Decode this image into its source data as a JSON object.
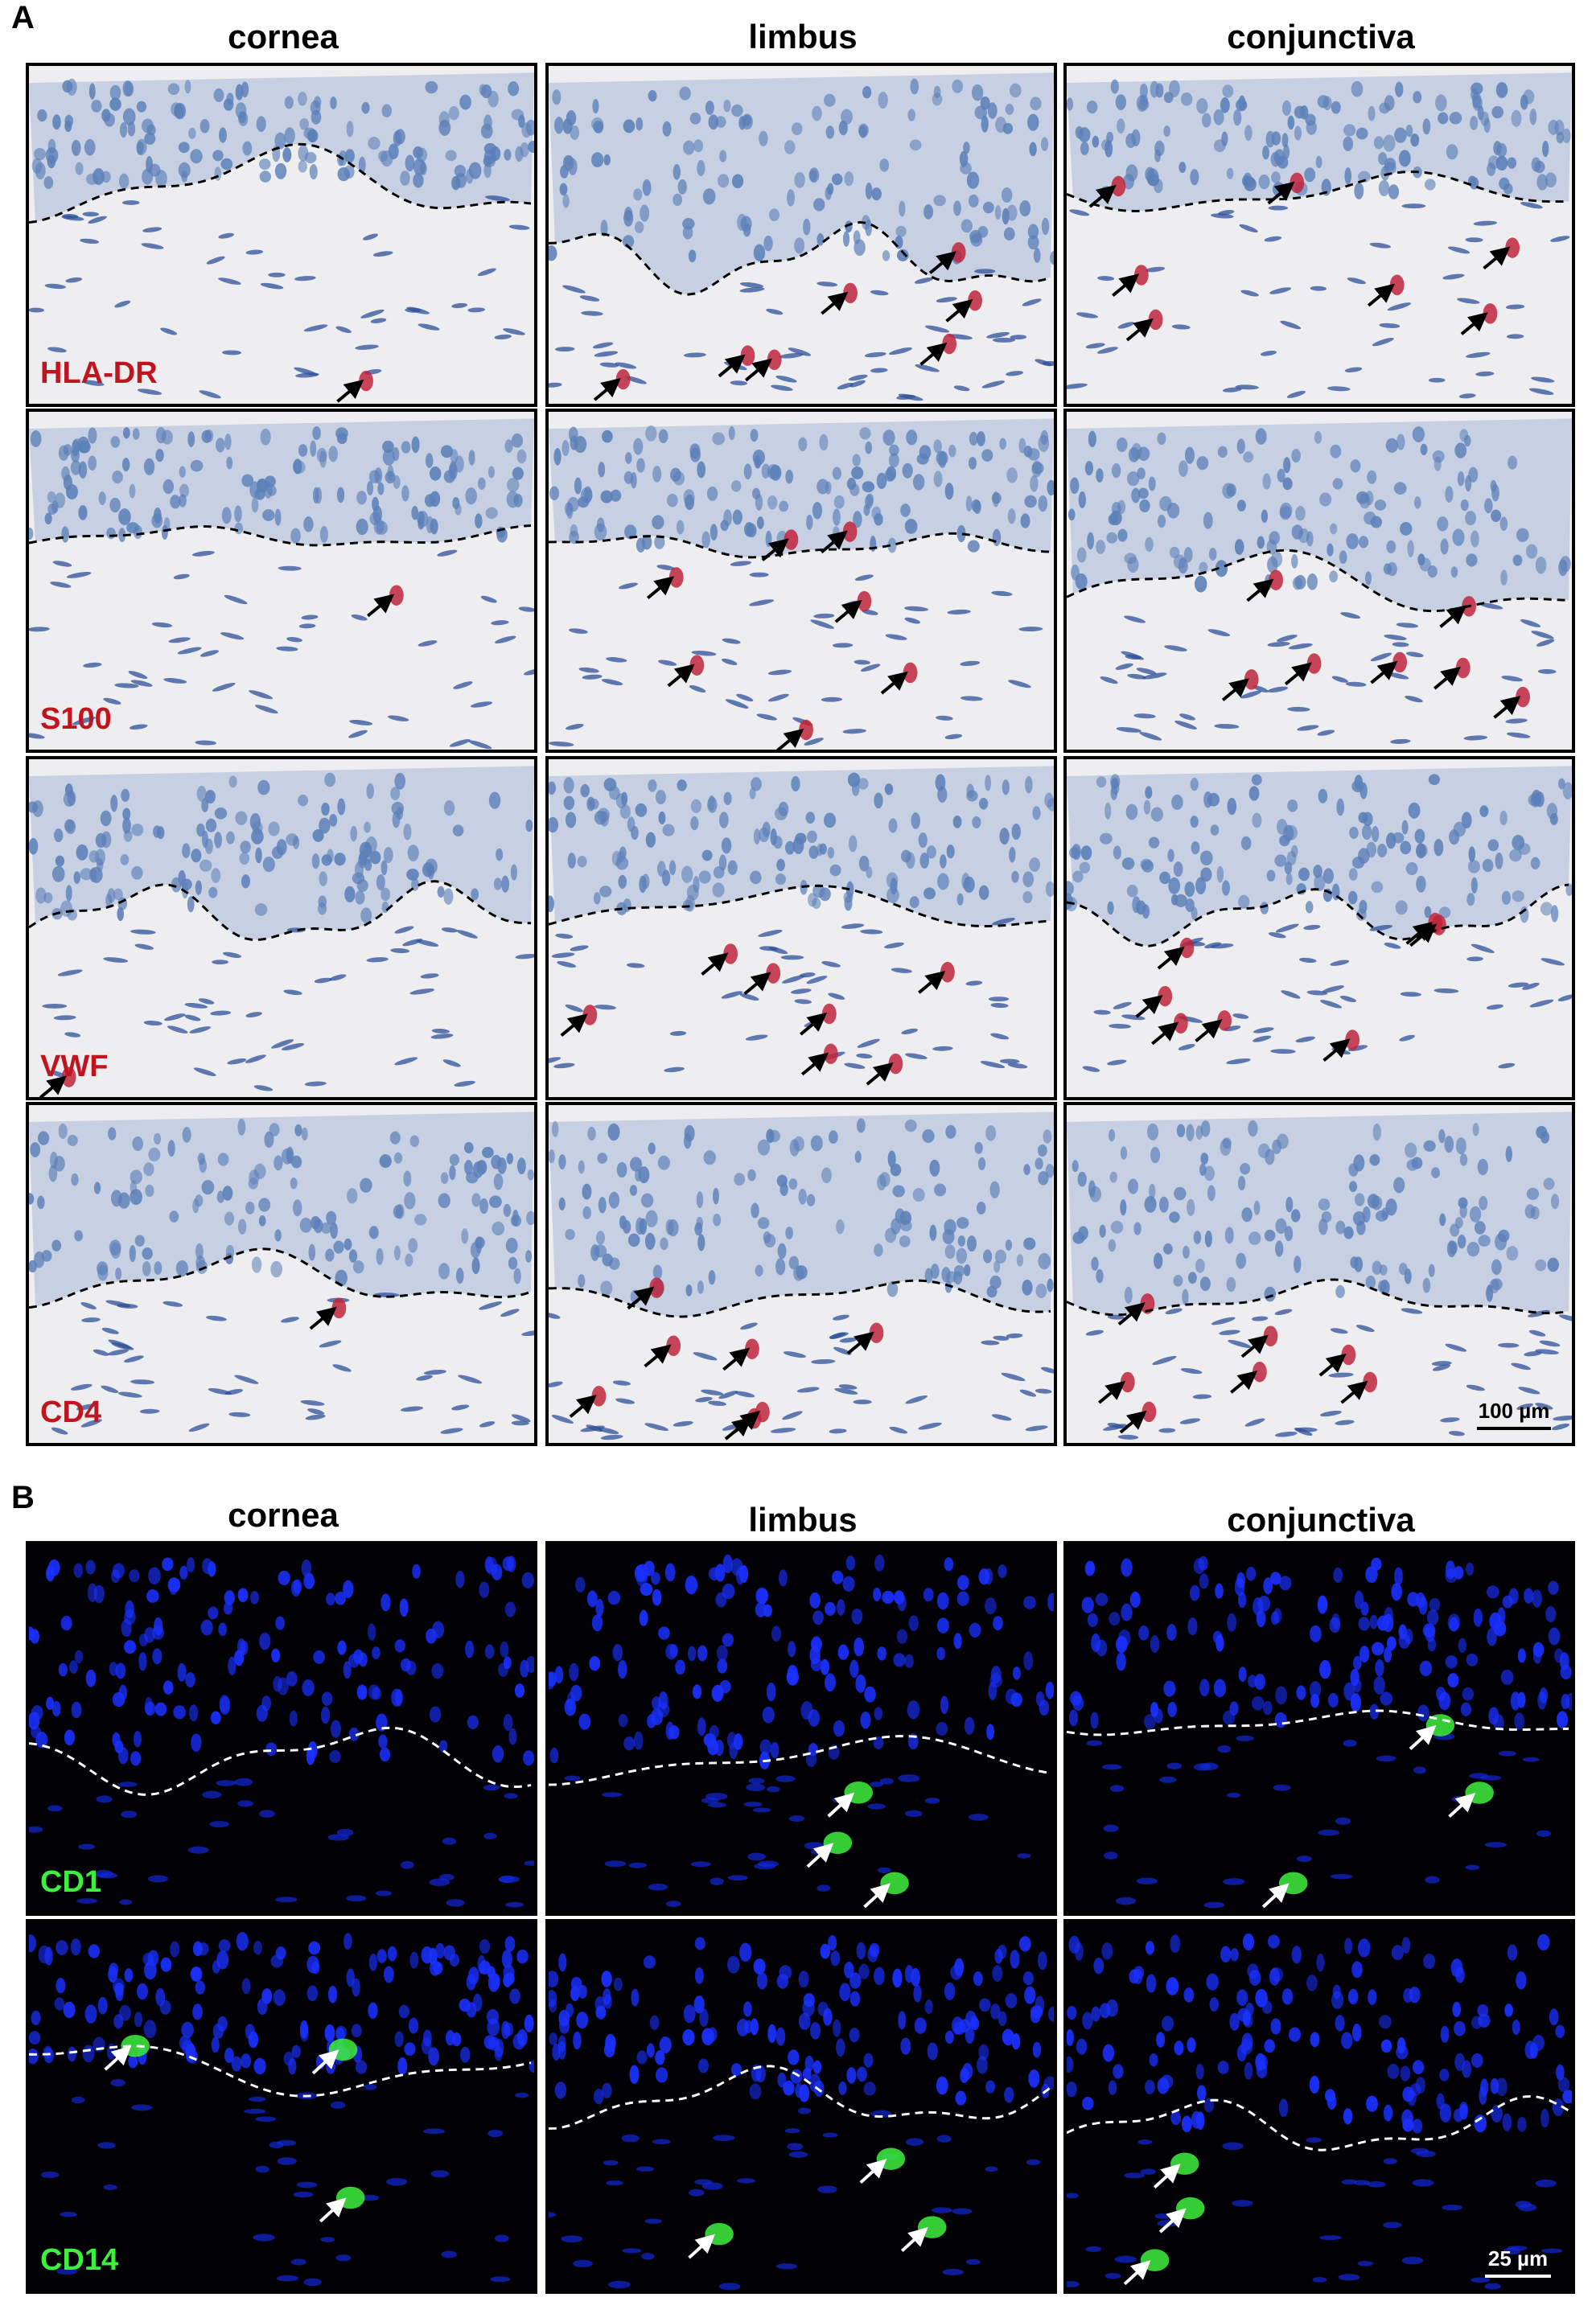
{
  "panels": [
    {
      "letter": "A",
      "columns": [
        "cornea",
        "limbus",
        "conjunctiva"
      ],
      "rows": [
        "HLA-DR",
        "S100",
        "VWF",
        "CD4"
      ],
      "scale_bar": "100 µm",
      "label_color": "#c0141e"
    },
    {
      "letter": "B",
      "columns": [
        "cornea",
        "limbus",
        "conjunctiva"
      ],
      "rows": [
        "CD1",
        "CD14"
      ],
      "scale_bar": "25 µm",
      "label_color": "#3ef03e"
    }
  ],
  "colors": {
    "hematoxylin": "#5b7fb8",
    "stain_red": "#c0243c",
    "dapi": "#1a30ff",
    "fitc": "#3ef03e"
  }
}
